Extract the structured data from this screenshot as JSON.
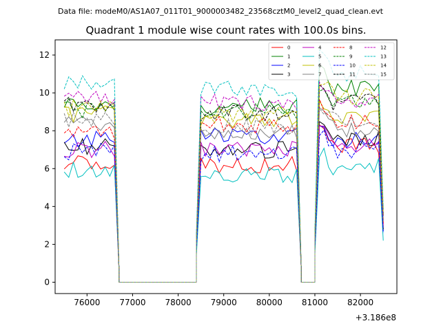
{
  "figure": {
    "suptitle": "Data file: modeM0/AS1A07_011T01_9000003482_23568cztM0_level2_quad_clean.evt",
    "title": "Quadrant 1 module wise count rates with 100.0s bins.",
    "offset_text": "+3.186e8"
  },
  "chart_data": {
    "type": "line",
    "title": "Quadrant 1 module wise count rates with 100.0s bins.",
    "xlabel": "",
    "ylabel": "",
    "x_offset": 318600000,
    "xlim": [
      75300,
      82800
    ],
    "ylim": [
      -0.6,
      12.8
    ],
    "xticks": [
      76000,
      77000,
      78000,
      79000,
      80000,
      81000,
      82000
    ],
    "xtick_labels": [
      "76000",
      "77000",
      "78000",
      "79000",
      "80000",
      "81000",
      "82000"
    ],
    "yticks": [
      0,
      2,
      4,
      6,
      8,
      10,
      12
    ],
    "ytick_labels": [
      "0",
      "2",
      "4",
      "6",
      "8",
      "10",
      "12"
    ],
    "legend_position": "top-right",
    "segments": [
      {
        "start": 75500,
        "end": 76600,
        "step": 100,
        "tail_drop": [
          76700
        ]
      },
      {
        "start": 78500,
        "end": 80600,
        "step": 100,
        "lead_rise": [
          78400
        ],
        "tail_drop": [
          80700
        ]
      },
      {
        "start": 81100,
        "end": 82400,
        "step": 100,
        "lead_rise": [
          81000
        ],
        "tail_drop": [
          82500
        ]
      }
    ],
    "gaps_zero": [
      [
        76700,
        78400
      ],
      [
        80700,
        81000
      ]
    ],
    "series": [
      {
        "name": "0",
        "color": "#ff0000",
        "dash": "solid",
        "levels": [
          6.4,
          6.2,
          7.2
        ],
        "tail_end": 2.8
      },
      {
        "name": "1",
        "color": "#008000",
        "dash": "solid",
        "levels": [
          9.3,
          9.3,
          10.3
        ],
        "tail_end": 3.5
      },
      {
        "name": "2",
        "color": "#0000ff",
        "dash": "solid",
        "levels": [
          7.6,
          7.7,
          7.5
        ],
        "tail_end": 2.7
      },
      {
        "name": "3",
        "color": "#000000",
        "dash": "solid",
        "levels": [
          7.2,
          7.0,
          7.6
        ],
        "tail_end": 2.8
      },
      {
        "name": "4",
        "color": "#bf00bf",
        "dash": "solid",
        "levels": [
          7.0,
          7.1,
          7.3
        ],
        "tail_end": 3.0
      },
      {
        "name": "5",
        "color": "#00bfbf",
        "dash": "solid",
        "levels": [
          5.9,
          5.7,
          6.1
        ],
        "tail_end": 2.2
      },
      {
        "name": "6",
        "color": "#bfbf00",
        "dash": "solid",
        "levels": [
          8.9,
          8.5,
          8.7
        ],
        "tail_end": 3.3
      },
      {
        "name": "7",
        "color": "#808080",
        "dash": "solid",
        "levels": [
          8.3,
          7.9,
          8.1
        ],
        "tail_end": 3.2
      },
      {
        "name": "8",
        "color": "#ff0000",
        "dash": "dashed",
        "levels": [
          8.0,
          8.3,
          8.4
        ],
        "tail_end": 3.1
      },
      {
        "name": "9",
        "color": "#008000",
        "dash": "dashed",
        "levels": [
          9.1,
          9.0,
          9.6
        ],
        "tail_end": 3.5
      },
      {
        "name": "10",
        "color": "#0000ff",
        "dash": "dashed",
        "levels": [
          6.9,
          6.8,
          7.0
        ],
        "tail_end": 2.6
      },
      {
        "name": "11",
        "color": "#000000",
        "dash": "dashed",
        "levels": [
          9.4,
          8.9,
          9.5
        ],
        "tail_end": 3.6
      },
      {
        "name": "12",
        "color": "#bf00bf",
        "dash": "dashed",
        "levels": [
          9.8,
          9.5,
          9.6
        ],
        "tail_end": 3.5
      },
      {
        "name": "13",
        "color": "#00bfbf",
        "dash": "dashed",
        "levels": [
          10.5,
          10.2,
          11.0
        ],
        "tail_end": 3.9
      },
      {
        "name": "14",
        "color": "#bfbf00",
        "dash": "dashed",
        "levels": [
          9.2,
          8.8,
          9.8
        ],
        "tail_end": 3.6
      },
      {
        "name": "15",
        "color": "#808080",
        "dash": "dashed",
        "levels": [
          8.6,
          8.2,
          8.6
        ],
        "tail_end": 3.3
      }
    ]
  }
}
